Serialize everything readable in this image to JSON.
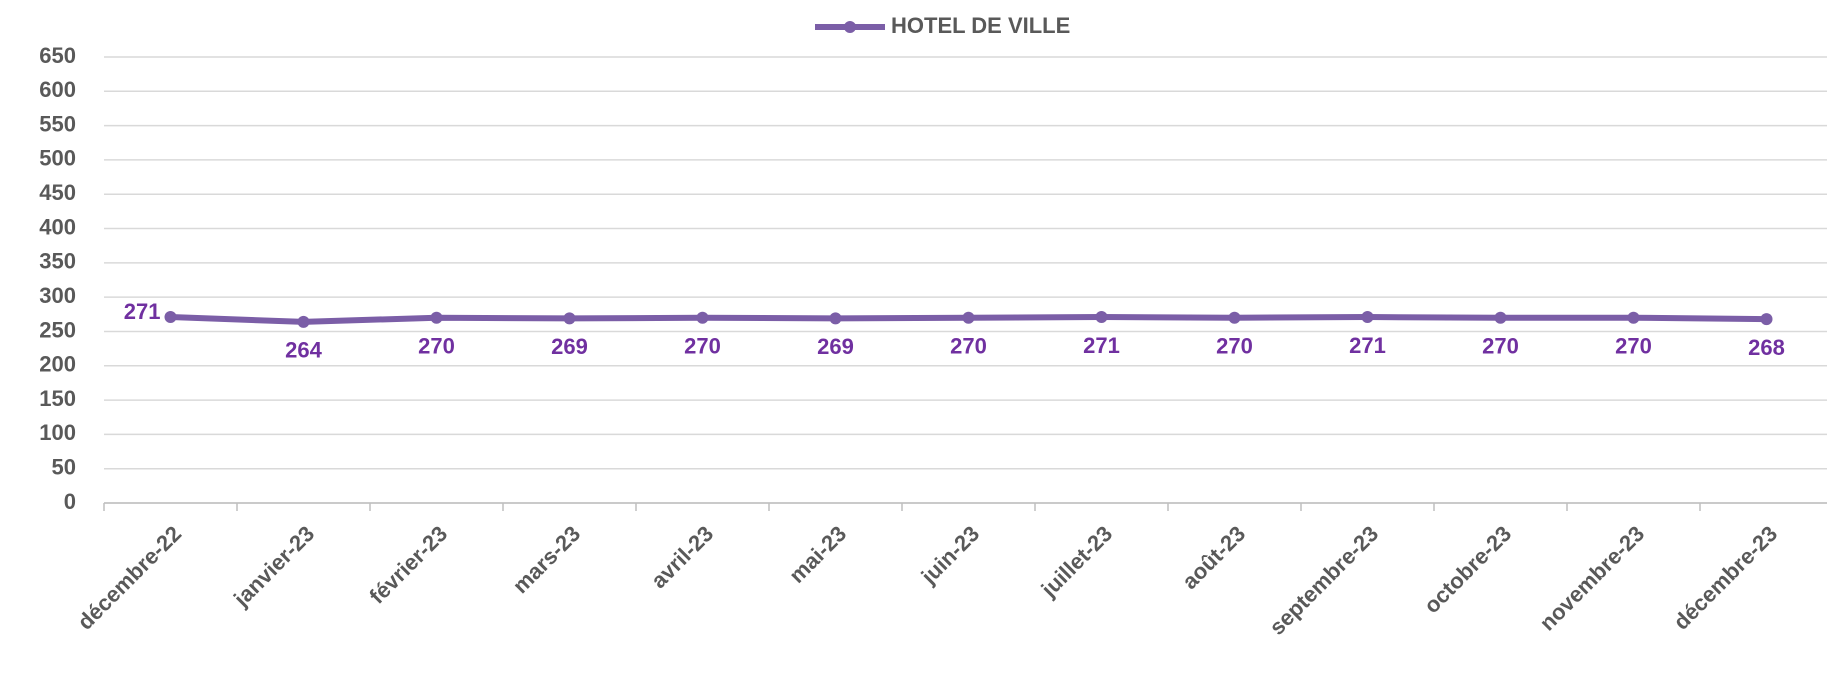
{
  "chart_data": {
    "type": "line",
    "categories": [
      "décembre-22",
      "janvier-23",
      "février-23",
      "mars-23",
      "avril-23",
      "mai-23",
      "juin-23",
      "juillet-23",
      "août-23",
      "septembre-23",
      "octobre-23",
      "novembre-23",
      "décembre-23"
    ],
    "series": [
      {
        "name": "HOTEL DE VILLE",
        "color": "#7b5ea7",
        "label_color": "#7030a0",
        "values": [
          271,
          264,
          270,
          269,
          270,
          269,
          270,
          271,
          270,
          271,
          270,
          270,
          268
        ]
      }
    ],
    "ylim": [
      0,
      650
    ],
    "yticks": [
      0,
      50,
      100,
      150,
      200,
      250,
      300,
      350,
      400,
      450,
      500,
      550,
      600,
      650
    ],
    "grid": true,
    "legend": "top"
  }
}
